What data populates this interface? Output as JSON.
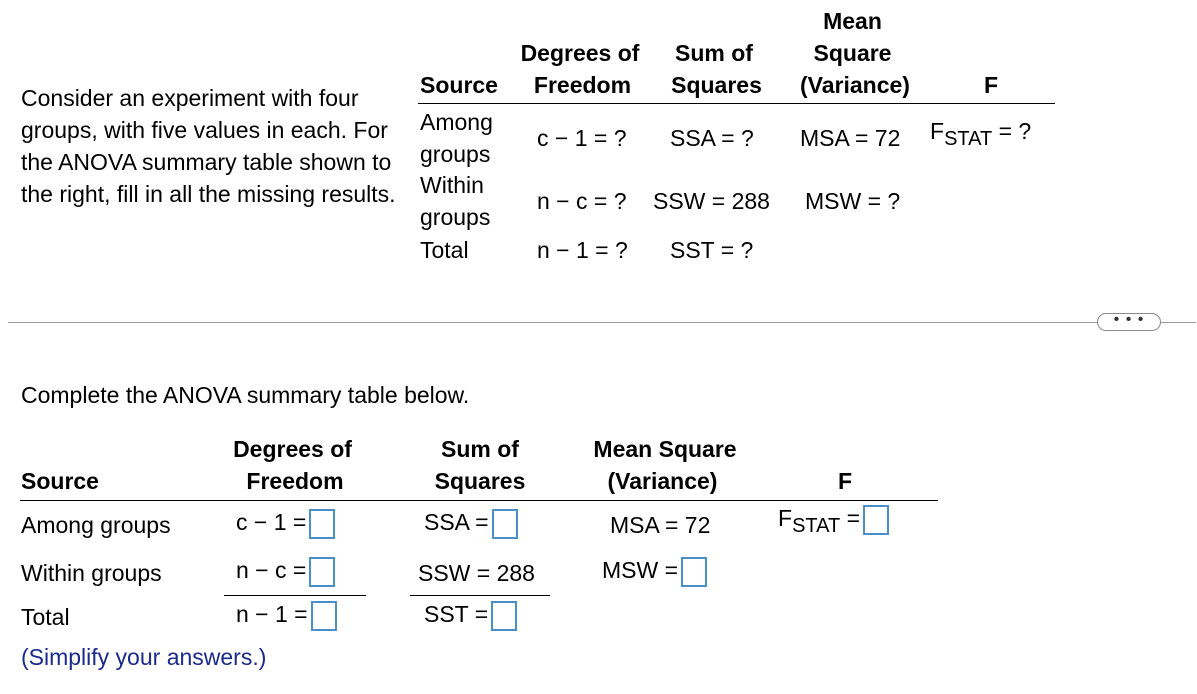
{
  "question": {
    "text": "Consider an experiment with four groups, with five values in each. For the ANOVA summary table shown to the right, fill in all the missing results."
  },
  "given_table": {
    "headers": {
      "source": "Source",
      "df_line1": "Degrees of",
      "df_line2": "Freedom",
      "ss_line1": "Sum of",
      "ss_line2": "Squares",
      "ms_line1": "Mean",
      "ms_line2": "Square",
      "ms_line3": "(Variance)",
      "f": "F"
    },
    "rows": [
      {
        "source_l1": "Among",
        "source_l2": "groups",
        "df": "c − 1 = ?",
        "ss": "SSA = ?",
        "ms": "MSA = 72",
        "f_main": "F",
        "f_sub": "STAT",
        "f_tail": "= ?"
      },
      {
        "source_l1": "Within",
        "source_l2": "groups",
        "df": "n − c = ?",
        "ss": "SSW = 288",
        "ms": "MSW = ?"
      },
      {
        "source_l1": "Total",
        "df": "n − 1 = ?",
        "ss": "SST = ?"
      }
    ]
  },
  "more_button": "• • •",
  "instruction": "Complete the ANOVA summary table below.",
  "answer_table": {
    "headers": {
      "source": "Source",
      "df_line1": "Degrees of",
      "df_line2": "Freedom",
      "ss_line1": "Sum of",
      "ss_line2": "Squares",
      "ms_line1": "Mean Square",
      "ms_line2": "(Variance)",
      "f": "F"
    },
    "rows": [
      {
        "source": "Among groups",
        "df_label": "c − 1 =",
        "ss_label": "SSA =",
        "ms_text": "MSA = 72",
        "f_main": "F",
        "f_sub": "STAT",
        "f_eq": "="
      },
      {
        "source": "Within groups",
        "df_label": "n − c =",
        "ss_text": "SSW = 288",
        "ms_label": "MSW ="
      },
      {
        "source": "Total",
        "df_label": "n − 1 =",
        "ss_label": "SST ="
      }
    ]
  },
  "hint": "(Simplify your answers.)",
  "colors": {
    "input_border": "#4a90c8",
    "hint": "#1a2a8c",
    "separator": "#9a9a9a"
  }
}
